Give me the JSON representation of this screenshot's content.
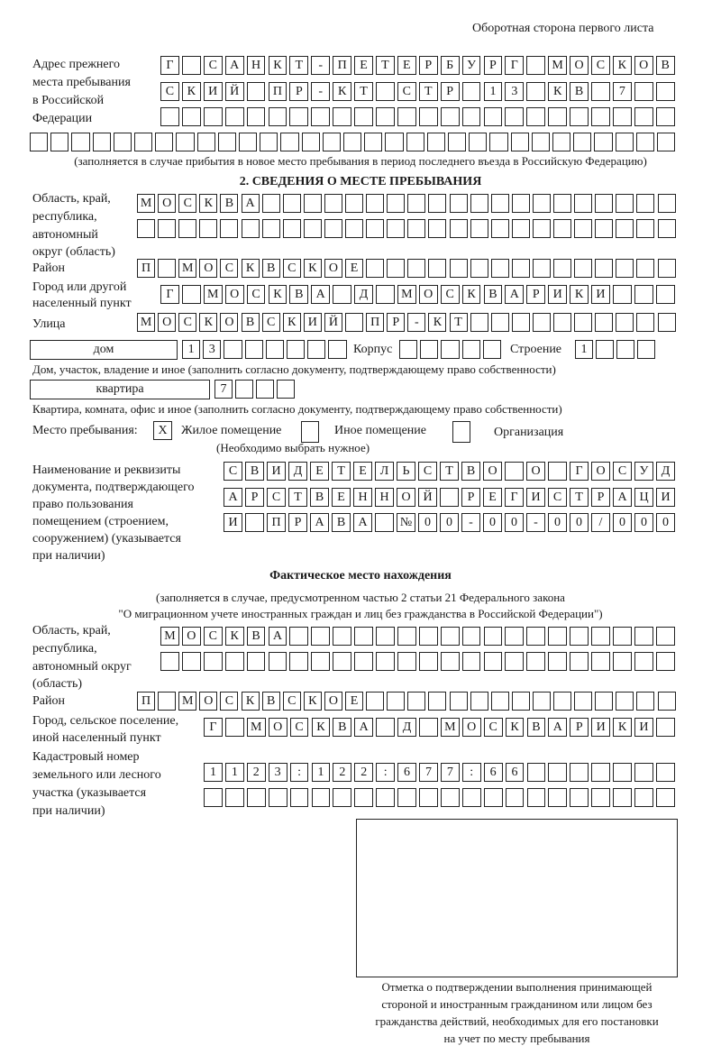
{
  "page_header": "Оборотная сторона первого листа",
  "previous_address": {
    "label": [
      "Адрес прежнего",
      "места пребывания",
      "в Российской",
      "Федерации"
    ],
    "rows": [
      [
        "Г",
        "",
        "С",
        "А",
        "Н",
        "К",
        "Т",
        "-",
        "П",
        "Е",
        "Т",
        "Е",
        "Р",
        "Б",
        "У",
        "Р",
        "Г",
        "",
        "М",
        "О",
        "С",
        "К",
        "О",
        "В"
      ],
      [
        "С",
        "К",
        "И",
        "Й",
        "",
        "П",
        "Р",
        "-",
        "К",
        "Т",
        "",
        "С",
        "Т",
        "Р",
        "",
        "1",
        "3",
        "",
        "К",
        "В",
        "",
        "7",
        "",
        ""
      ],
      [
        "",
        "",
        "",
        "",
        "",
        "",
        "",
        "",
        "",
        "",
        "",
        "",
        "",
        "",
        "",
        "",
        "",
        "",
        "",
        "",
        "",
        "",
        "",
        ""
      ],
      [
        "",
        "",
        "",
        "",
        "",
        "",
        "",
        "",
        "",
        "",
        "",
        "",
        "",
        "",
        "",
        "",
        "",
        "",
        "",
        "",
        "",
        "",
        "",
        "",
        "",
        "",
        "",
        "",
        "",
        "",
        ""
      ]
    ],
    "note": "(заполняется в случае прибытия в новое место пребывания в период последнего въезда в Российскую Федерацию)"
  },
  "section2": {
    "title": "2. СВЕДЕНИЯ О МЕСТЕ ПРЕБЫВАНИЯ",
    "region_label": [
      "Область, край,",
      "республика,",
      "автономный",
      "округ (область)"
    ],
    "region_rows": [
      [
        "М",
        "О",
        "С",
        "К",
        "В",
        "А",
        "",
        "",
        "",
        "",
        "",
        "",
        "",
        "",
        "",
        "",
        "",
        "",
        "",
        "",
        "",
        "",
        "",
        "",
        "",
        ""
      ],
      [
        "",
        "",
        "",
        "",
        "",
        "",
        "",
        "",
        "",
        "",
        "",
        "",
        "",
        "",
        "",
        "",
        "",
        "",
        "",
        "",
        "",
        "",
        "",
        "",
        "",
        ""
      ]
    ],
    "district_label": "Район",
    "district": [
      "П",
      "",
      "М",
      "О",
      "С",
      "К",
      "В",
      "С",
      "К",
      "О",
      "Е",
      "",
      "",
      "",
      "",
      "",
      "",
      "",
      "",
      "",
      "",
      "",
      "",
      "",
      "",
      ""
    ],
    "city_label": [
      "Город или другой",
      "населенный пункт"
    ],
    "city": [
      "Г",
      "",
      "М",
      "О",
      "С",
      "К",
      "В",
      "А",
      "",
      "Д",
      "",
      "М",
      "О",
      "С",
      "К",
      "В",
      "А",
      "Р",
      "И",
      "К",
      "И",
      "",
      "",
      ""
    ],
    "street_label": "Улица",
    "street": [
      "М",
      "О",
      "С",
      "К",
      "О",
      "В",
      "С",
      "К",
      "И",
      "Й",
      "",
      "П",
      "Р",
      "-",
      "К",
      "Т",
      "",
      "",
      "",
      "",
      "",
      "",
      "",
      "",
      "",
      ""
    ],
    "house_type": "дом",
    "house": [
      "1",
      "3",
      "",
      "",
      "",
      "",
      "",
      ""
    ],
    "korpus_label": "Корпус",
    "korpus": [
      "",
      "",
      "",
      "",
      ""
    ],
    "stroenie_label": "Строение",
    "stroenie": [
      "1",
      "",
      "",
      ""
    ],
    "house_note": "Дом, участок, владение и иное (заполнить согласно документу, подтверждающему право собственности)",
    "flat_type": "квартира",
    "flat": [
      "7",
      "",
      "",
      ""
    ],
    "flat_note": "Квартира, комната, офис и иное (заполнить согласно документу, подтверждающему право собственности)",
    "stay_label": "Место пребывания:",
    "stay_options": [
      {
        "label": "Жилое помещение",
        "mark": "X"
      },
      {
        "label": "Иное помещение",
        "mark": ""
      },
      {
        "label": "Организация",
        "mark": ""
      }
    ],
    "stay_note": "(Необходимо выбрать нужное)",
    "doc_label": [
      "Наименование и реквизиты",
      "документа, подтверждающего",
      "право пользования",
      "помещением (строением,",
      "сооружением) (указывается",
      "при наличии)"
    ],
    "doc_rows": [
      [
        "С",
        "В",
        "И",
        "Д",
        "Е",
        "Т",
        "Е",
        "Л",
        "Ь",
        "С",
        "Т",
        "В",
        "О",
        "",
        "О",
        "",
        "Г",
        "О",
        "С",
        "У",
        "Д"
      ],
      [
        "А",
        "Р",
        "С",
        "Т",
        "В",
        "Е",
        "Н",
        "Н",
        "О",
        "Й",
        "",
        "Р",
        "Е",
        "Г",
        "И",
        "С",
        "Т",
        "Р",
        "А",
        "Ц",
        "И"
      ],
      [
        "И",
        "",
        "П",
        "Р",
        "А",
        "В",
        "А",
        "",
        "№",
        "0",
        "0",
        "-",
        "0",
        "0",
        "-",
        "0",
        "0",
        "/",
        "0",
        "0",
        "0"
      ]
    ]
  },
  "actual_location": {
    "title": "Фактическое место нахождения",
    "note": [
      "(заполняется в случае, предусмотренном частью 2 статьи 21 Федерального закона",
      "\"О миграционном учете иностранных граждан и лиц без гражданства в Российской Федерации\")"
    ],
    "region_label": [
      "Область, край,",
      "республика,",
      "автономный округ",
      "(область)"
    ],
    "region_rows": [
      [
        "М",
        "О",
        "С",
        "К",
        "В",
        "А",
        "",
        "",
        "",
        "",
        "",
        "",
        "",
        "",
        "",
        "",
        "",
        "",
        "",
        "",
        "",
        "",
        "",
        ""
      ],
      [
        "",
        "",
        "",
        "",
        "",
        "",
        "",
        "",
        "",
        "",
        "",
        "",
        "",
        "",
        "",
        "",
        "",
        "",
        "",
        "",
        "",
        "",
        "",
        ""
      ]
    ],
    "district_label": "Район",
    "district": [
      "П",
      "",
      "М",
      "О",
      "С",
      "К",
      "В",
      "С",
      "К",
      "О",
      "Е",
      "",
      "",
      "",
      "",
      "",
      "",
      "",
      "",
      "",
      "",
      "",
      "",
      "",
      "",
      ""
    ],
    "city_label": [
      "Город, сельское поселение,",
      "иной населенный пункт"
    ],
    "city": [
      "Г",
      "",
      "М",
      "О",
      "С",
      "К",
      "В",
      "А",
      "",
      "Д",
      "",
      "М",
      "О",
      "С",
      "К",
      "В",
      "А",
      "Р",
      "И",
      "К",
      "И",
      ""
    ],
    "cadastral_label": [
      "Кадастровый номер",
      "земельного или лесного",
      "участка (указывается",
      "при наличии)"
    ],
    "cadastral_rows": [
      [
        "1",
        "1",
        "2",
        "3",
        ":",
        "1",
        "2",
        "2",
        ":",
        "6",
        "7",
        "7",
        ":",
        "6",
        "6",
        "",
        "",
        "",
        "",
        "",
        "",
        ""
      ],
      [
        "",
        "",
        "",
        "",
        "",
        "",
        "",
        "",
        "",
        "",
        "",
        "",
        "",
        "",
        "",
        "",
        "",
        "",
        "",
        "",
        "",
        ""
      ]
    ]
  },
  "confirmation": {
    "caption": [
      "Отметка о подтверждении выполнения принимающей",
      "стороной и иностранным гражданином или лицом без",
      "гражданства действий, необходимых для его постановки",
      "на учет по месту пребывания"
    ]
  }
}
